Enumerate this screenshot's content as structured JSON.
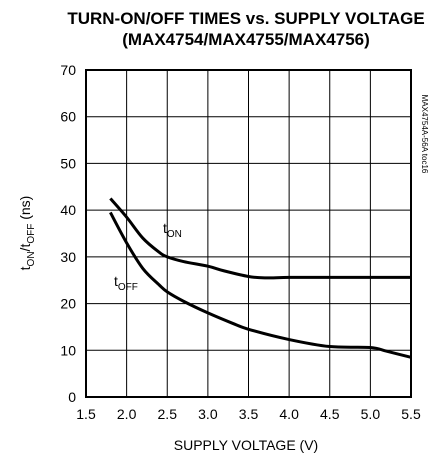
{
  "chart_data": {
    "type": "line",
    "title": "TURN-ON/OFF TIMES vs. SUPPLY VOLTAGE",
    "subtitle": "(MAX4754/MAX4755/MAX4756)",
    "xlabel": "SUPPLY VOLTAGE (V)",
    "ylabel": {
      "main1": "t",
      "sub1": "ON",
      "mid": "/t",
      "sub2": "OFF",
      "end": " (ns)"
    },
    "xlim": [
      1.5,
      5.5
    ],
    "ylim": [
      0,
      70
    ],
    "xticks": [
      "1.5",
      "2.0",
      "2.5",
      "3.0",
      "3.5",
      "4.0",
      "4.5",
      "5.0",
      "5.5"
    ],
    "yticks": [
      "0",
      "10",
      "20",
      "30",
      "40",
      "50",
      "60",
      "70"
    ],
    "grid": true,
    "side_label": "MAX4754A-56A toc16",
    "series": [
      {
        "name": "tON",
        "label_main": "t",
        "label_sub": "ON",
        "x": [
          1.8,
          2.0,
          2.2,
          2.4,
          2.5,
          2.7,
          3.0,
          3.2,
          3.5,
          3.7,
          4.0,
          4.5,
          5.0,
          5.5
        ],
        "y": [
          42.5,
          38.5,
          34.0,
          31.0,
          30.0,
          29.0,
          28.0,
          27.0,
          25.8,
          25.5,
          25.6,
          25.6,
          25.6,
          25.6
        ]
      },
      {
        "name": "tOFF",
        "label_main": "t",
        "label_sub": "OFF",
        "x": [
          1.8,
          2.0,
          2.2,
          2.4,
          2.5,
          2.7,
          3.0,
          3.3,
          3.5,
          4.0,
          4.5,
          5.0,
          5.2,
          5.5
        ],
        "y": [
          39.5,
          33.0,
          27.5,
          24.0,
          22.5,
          20.5,
          18.0,
          15.8,
          14.5,
          12.3,
          10.8,
          10.6,
          9.8,
          8.5
        ]
      }
    ]
  }
}
